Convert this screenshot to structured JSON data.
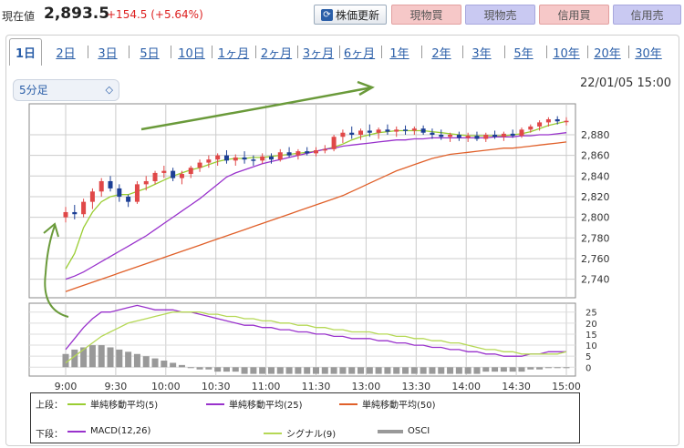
{
  "header": {
    "price_label": "現在値",
    "price_value": "2,893.5",
    "price_change": "+154.5 (+5.64%)",
    "refresh_label": "株価更新",
    "buttons": [
      "現物買",
      "現物売",
      "信用買",
      "信用売"
    ]
  },
  "tabs": [
    "1日",
    "2日",
    "3日",
    "5日",
    "10日",
    "1ヶ月",
    "2ヶ月",
    "3ヶ月",
    "6ヶ月",
    "1年",
    "2年",
    "3年",
    "5年",
    "10年",
    "20年",
    "30年"
  ],
  "active_tab": "1日",
  "interval": {
    "selected": "5分足"
  },
  "timestamp": "22/01/05 15:00",
  "colors": {
    "up": "#e04848",
    "down": "#1c3f95",
    "ma5": "#9acd32",
    "ma25": "#9932cc",
    "ma50": "#e0602a",
    "macd": "#9932cc",
    "signal": "#b5d855",
    "osci": "#999999",
    "arrow": "#6a9a3a"
  },
  "chart_data": [
    {
      "type": "candlestick",
      "x_ticks": [
        "9:00",
        "9:30",
        "10:00",
        "10:30",
        "11:00",
        "11:30",
        "13:00",
        "13:30",
        "14:00",
        "14:30",
        "15:00"
      ],
      "y_ticks": [
        2740,
        2760,
        2780,
        2800,
        2820,
        2840,
        2860,
        2880
      ],
      "ylim": [
        2722,
        2910
      ],
      "grid": true,
      "candles": [
        {
          "o": 2800,
          "h": 2810,
          "l": 2795,
          "c": 2805
        },
        {
          "o": 2805,
          "h": 2812,
          "l": 2798,
          "c": 2803
        },
        {
          "o": 2803,
          "h": 2818,
          "l": 2800,
          "c": 2815
        },
        {
          "o": 2815,
          "h": 2828,
          "l": 2808,
          "c": 2825
        },
        {
          "o": 2825,
          "h": 2838,
          "l": 2820,
          "c": 2835
        },
        {
          "o": 2835,
          "h": 2840,
          "l": 2825,
          "c": 2828
        },
        {
          "o": 2828,
          "h": 2832,
          "l": 2815,
          "c": 2820
        },
        {
          "o": 2820,
          "h": 2822,
          "l": 2810,
          "c": 2815
        },
        {
          "o": 2815,
          "h": 2835,
          "l": 2813,
          "c": 2832
        },
        {
          "o": 2832,
          "h": 2840,
          "l": 2826,
          "c": 2835
        },
        {
          "o": 2835,
          "h": 2845,
          "l": 2832,
          "c": 2843
        },
        {
          "o": 2843,
          "h": 2850,
          "l": 2838,
          "c": 2845
        },
        {
          "o": 2845,
          "h": 2848,
          "l": 2835,
          "c": 2838
        },
        {
          "o": 2838,
          "h": 2845,
          "l": 2832,
          "c": 2842
        },
        {
          "o": 2842,
          "h": 2850,
          "l": 2838,
          "c": 2848
        },
        {
          "o": 2848,
          "h": 2856,
          "l": 2844,
          "c": 2853
        },
        {
          "o": 2853,
          "h": 2860,
          "l": 2848,
          "c": 2856
        },
        {
          "o": 2856,
          "h": 2862,
          "l": 2850,
          "c": 2860
        },
        {
          "o": 2860,
          "h": 2865,
          "l": 2852,
          "c": 2855
        },
        {
          "o": 2855,
          "h": 2861,
          "l": 2850,
          "c": 2858
        },
        {
          "o": 2858,
          "h": 2864,
          "l": 2852,
          "c": 2856
        },
        {
          "o": 2856,
          "h": 2860,
          "l": 2850,
          "c": 2855
        },
        {
          "o": 2855,
          "h": 2862,
          "l": 2852,
          "c": 2859
        },
        {
          "o": 2859,
          "h": 2862,
          "l": 2852,
          "c": 2856
        },
        {
          "o": 2856,
          "h": 2866,
          "l": 2854,
          "c": 2863
        },
        {
          "o": 2863,
          "h": 2868,
          "l": 2858,
          "c": 2860
        },
        {
          "o": 2860,
          "h": 2866,
          "l": 2856,
          "c": 2864
        },
        {
          "o": 2864,
          "h": 2868,
          "l": 2860,
          "c": 2862
        },
        {
          "o": 2862,
          "h": 2868,
          "l": 2859,
          "c": 2865
        },
        {
          "o": 2865,
          "h": 2870,
          "l": 2862,
          "c": 2866
        },
        {
          "o": 2866,
          "h": 2880,
          "l": 2864,
          "c": 2878
        },
        {
          "o": 2878,
          "h": 2885,
          "l": 2872,
          "c": 2882
        },
        {
          "o": 2882,
          "h": 2888,
          "l": 2876,
          "c": 2880
        },
        {
          "o": 2880,
          "h": 2886,
          "l": 2875,
          "c": 2884
        },
        {
          "o": 2884,
          "h": 2890,
          "l": 2878,
          "c": 2882
        },
        {
          "o": 2882,
          "h": 2887,
          "l": 2876,
          "c": 2885
        },
        {
          "o": 2885,
          "h": 2890,
          "l": 2880,
          "c": 2883
        },
        {
          "o": 2883,
          "h": 2888,
          "l": 2878,
          "c": 2885
        },
        {
          "o": 2885,
          "h": 2889,
          "l": 2880,
          "c": 2884
        },
        {
          "o": 2884,
          "h": 2888,
          "l": 2880,
          "c": 2886
        },
        {
          "o": 2886,
          "h": 2889,
          "l": 2880,
          "c": 2882
        },
        {
          "o": 2882,
          "h": 2886,
          "l": 2876,
          "c": 2880
        },
        {
          "o": 2880,
          "h": 2885,
          "l": 2875,
          "c": 2878
        },
        {
          "o": 2878,
          "h": 2882,
          "l": 2873,
          "c": 2880
        },
        {
          "o": 2880,
          "h": 2883,
          "l": 2874,
          "c": 2877
        },
        {
          "o": 2877,
          "h": 2882,
          "l": 2873,
          "c": 2879
        },
        {
          "o": 2879,
          "h": 2883,
          "l": 2874,
          "c": 2876
        },
        {
          "o": 2876,
          "h": 2882,
          "l": 2873,
          "c": 2880
        },
        {
          "o": 2880,
          "h": 2884,
          "l": 2876,
          "c": 2878
        },
        {
          "o": 2878,
          "h": 2883,
          "l": 2874,
          "c": 2881
        },
        {
          "o": 2881,
          "h": 2885,
          "l": 2877,
          "c": 2879
        },
        {
          "o": 2879,
          "h": 2887,
          "l": 2877,
          "c": 2885
        },
        {
          "o": 2885,
          "h": 2890,
          "l": 2882,
          "c": 2888
        },
        {
          "o": 2888,
          "h": 2894,
          "l": 2884,
          "c": 2892
        },
        {
          "o": 2892,
          "h": 2897,
          "l": 2888,
          "c": 2895
        },
        {
          "o": 2895,
          "h": 2898,
          "l": 2890,
          "c": 2893
        },
        {
          "o": 2893,
          "h": 2897,
          "l": 2889,
          "c": 2893.5
        }
      ],
      "series": [
        {
          "name": "単純移動平均(5)",
          "color_key": "ma5",
          "values": [
            2750,
            2765,
            2790,
            2805,
            2815,
            2820,
            2822,
            2822,
            2825,
            2828,
            2832,
            2836,
            2840,
            2843,
            2846,
            2848,
            2851,
            2854,
            2856,
            2857,
            2857,
            2858,
            2858,
            2859,
            2860,
            2861,
            2862,
            2863,
            2864,
            2866,
            2868,
            2871,
            2875,
            2878,
            2880,
            2882,
            2883,
            2884,
            2884,
            2884,
            2884,
            2883,
            2882,
            2881,
            2880,
            2879,
            2879,
            2879,
            2879,
            2879,
            2880,
            2881,
            2883,
            2886,
            2889,
            2891,
            2893
          ]
        },
        {
          "name": "単純移動平均(25)",
          "color_key": "ma25",
          "values": [
            2740,
            2743,
            2747,
            2752,
            2757,
            2762,
            2767,
            2772,
            2777,
            2782,
            2788,
            2794,
            2800,
            2806,
            2812,
            2818,
            2825,
            2832,
            2839,
            2843,
            2846,
            2849,
            2852,
            2854,
            2856,
            2858,
            2860,
            2862,
            2864,
            2866,
            2867,
            2869,
            2870,
            2871,
            2872,
            2873,
            2874,
            2875,
            2875,
            2876,
            2876,
            2877,
            2877,
            2877,
            2877,
            2877,
            2877,
            2877,
            2878,
            2878,
            2878,
            2879,
            2879,
            2880,
            2880,
            2881,
            2882
          ]
        },
        {
          "name": "単純移動平均(50)",
          "color_key": "ma50",
          "values": [
            2728,
            2731,
            2734,
            2737,
            2740,
            2743,
            2746,
            2749,
            2752,
            2755,
            2758,
            2761,
            2764,
            2767,
            2770,
            2773,
            2776,
            2779,
            2782,
            2785,
            2788,
            2791,
            2794,
            2797,
            2800,
            2803,
            2806,
            2809,
            2812,
            2815,
            2818,
            2821,
            2825,
            2829,
            2833,
            2837,
            2841,
            2845,
            2848,
            2851,
            2854,
            2857,
            2859,
            2861,
            2862,
            2863,
            2864,
            2865,
            2866,
            2867,
            2867,
            2868,
            2869,
            2870,
            2871,
            2872,
            2873
          ]
        }
      ]
    },
    {
      "type": "line",
      "y_ticks": [
        0,
        5,
        10,
        15,
        20,
        25
      ],
      "ylim": [
        -4,
        29
      ],
      "grid": true,
      "series": [
        {
          "name": "MACD(12,26)",
          "color_key": "macd",
          "values": [
            8,
            13,
            18,
            22,
            25,
            25,
            26,
            27,
            28,
            27,
            26,
            26,
            26,
            25,
            25,
            24,
            23,
            22,
            21,
            20,
            19,
            19,
            18,
            18,
            17,
            17,
            16,
            16,
            15,
            15,
            14,
            14,
            13,
            13,
            13,
            12,
            12,
            11,
            11,
            10,
            10,
            9,
            9,
            8,
            8,
            7,
            7,
            6,
            6,
            5,
            5,
            5,
            6,
            6,
            7,
            7,
            7
          ]
        },
        {
          "name": "シグナル(9)",
          "color_key": "signal",
          "values": [
            2,
            5,
            8,
            11,
            14,
            16,
            18,
            20,
            21,
            22,
            23,
            24,
            25,
            25,
            25,
            25,
            24,
            24,
            23,
            23,
            22,
            22,
            21,
            21,
            20,
            20,
            19,
            19,
            18,
            18,
            17,
            17,
            16,
            16,
            16,
            15,
            15,
            14,
            14,
            13,
            13,
            12,
            12,
            11,
            11,
            10,
            9,
            8,
            8,
            7,
            7,
            6,
            6,
            6,
            6,
            6,
            7
          ]
        },
        {
          "name": "OSCI",
          "color_key": "osci",
          "type": "bar",
          "values": [
            6,
            8,
            9,
            10,
            10,
            9,
            8,
            7,
            6,
            5,
            4,
            3,
            2,
            1,
            0,
            -1,
            -1,
            -2,
            -2,
            -2,
            -3,
            -3,
            -3,
            -3,
            -3,
            -3,
            -3,
            -3,
            -3,
            -3,
            -3,
            -3,
            -3,
            -3,
            -3,
            -3,
            -3,
            -3,
            -3,
            -3,
            -3,
            -3,
            -3,
            -3,
            -3,
            -3,
            -3,
            -2,
            -2,
            -2,
            -2,
            -2,
            -1,
            -1,
            0,
            0,
            0
          ]
        }
      ]
    }
  ],
  "legend": {
    "upper_label": "上段：",
    "lower_label": "下段：",
    "upper": [
      {
        "label": "単純移動平均(5)",
        "color_key": "ma5"
      },
      {
        "label": "単純移動平均(25)",
        "color_key": "ma25"
      },
      {
        "label": "単純移動平均(50)",
        "color_key": "ma50"
      }
    ],
    "lower": [
      {
        "label": "MACD(12,26)",
        "color_key": "macd"
      },
      {
        "label": "シグナル(9)",
        "color_key": "signal"
      },
      {
        "label": "OSCI",
        "color_key": "osci"
      }
    ]
  }
}
